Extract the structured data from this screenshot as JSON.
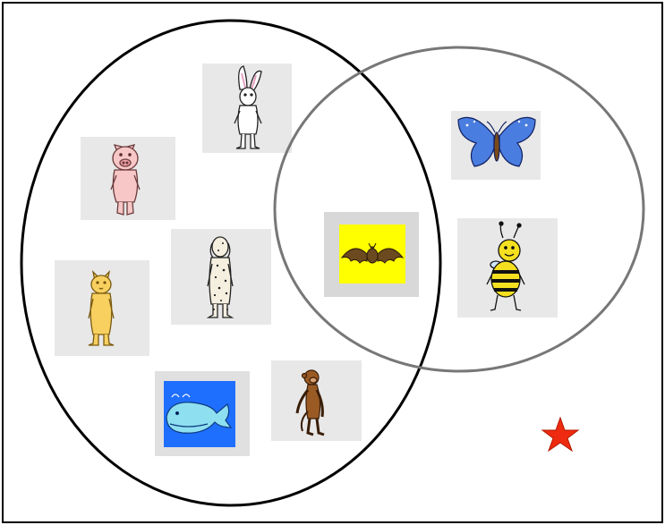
{
  "diagram": {
    "type": "venn",
    "sets": [
      {
        "id": "left",
        "members": [
          "rabbit",
          "pig",
          "dog",
          "cat",
          "whale",
          "monkey",
          "bat"
        ]
      },
      {
        "id": "right",
        "members": [
          "bat",
          "butterfly",
          "bee"
        ]
      }
    ],
    "outside": [
      "star"
    ],
    "colors": {
      "left_outline": "#000000",
      "right_outline": "#777777",
      "tile_bg": "#e8e8e8",
      "bat_bg": "#ffff00",
      "whale_bg": "#1f6fff",
      "star": "#ee2b10"
    },
    "icons": [
      "rabbit-icon",
      "pig-icon",
      "dog-icon",
      "cat-icon",
      "whale-icon",
      "monkey-icon",
      "bat-icon",
      "butterfly-icon",
      "bee-icon",
      "star-icon"
    ]
  }
}
